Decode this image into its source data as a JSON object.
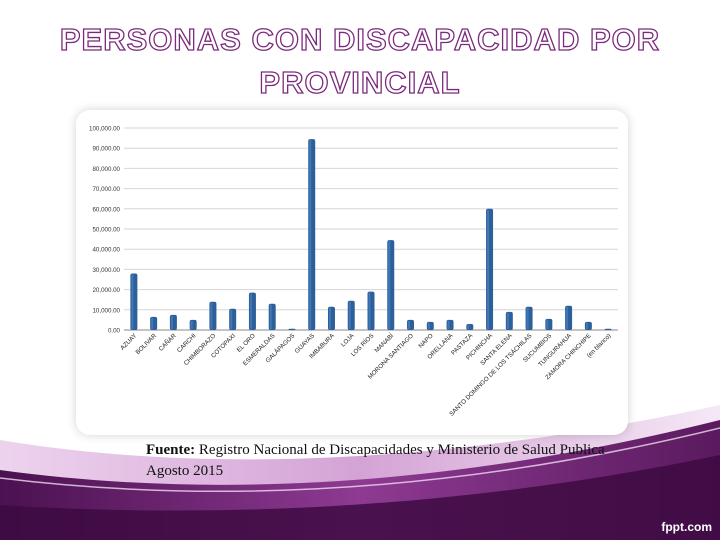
{
  "slide": {
    "title_line_1": "PERSONAS CON DISCAPACIDAD POR",
    "title_line_2": "PROVINCIAL",
    "source_label": "Fuente:",
    "source_text": " Registro Nacional de Discapacidades y Ministerio de Salud Publica Agosto 2015",
    "brand": "fppt.com"
  },
  "colors": {
    "bar": "#2d5f9a",
    "bar_highlight": "#4a82c0",
    "title_outline": "#7a2a7c",
    "band_dark": "#5a1a5e",
    "band_mid": "#8a3a8e",
    "band_light": "#c98ccb"
  },
  "chart_data": {
    "type": "bar",
    "categories": [
      "AZUAY",
      "BOLIVAR",
      "CAÑAR",
      "CARCHI",
      "CHIMBORAZO",
      "COTOPAXI",
      "EL ORO",
      "ESMERALDAS",
      "GALÁPAGOS",
      "GUAYAS",
      "IMBABURA",
      "LOJA",
      "LOS RÍOS",
      "MANABÍ",
      "MORONA SANTIAGO",
      "NAPO",
      "ORELLANA",
      "PASTAZA",
      "PICHINCHA",
      "SANTA ELENA",
      "SANTO DOMINGO DE LOS TSÁCHILAS",
      "SUCUMBIOS",
      "TUNGURAHUA",
      "ZAMORA CHINCHIPE",
      "(en blanco)"
    ],
    "values": [
      28000,
      6500,
      7500,
      5000,
      14000,
      10500,
      18500,
      13000,
      600,
      94500,
      11500,
      14500,
      19000,
      44500,
      5000,
      4000,
      5000,
      3000,
      60000,
      9000,
      11500,
      5500,
      12000,
      4000,
      600
    ],
    "yticks": [
      "0.00",
      "10,000.00",
      "20,000.00",
      "30,000.00",
      "40,000.00",
      "50,000.00",
      "60,000.00",
      "70,000.00",
      "80,000.00",
      "90,000.00",
      "100,000.00"
    ],
    "ylim": [
      0,
      100000
    ],
    "grid": true,
    "legend": "none",
    "title": "",
    "xlabel": "",
    "ylabel": ""
  }
}
